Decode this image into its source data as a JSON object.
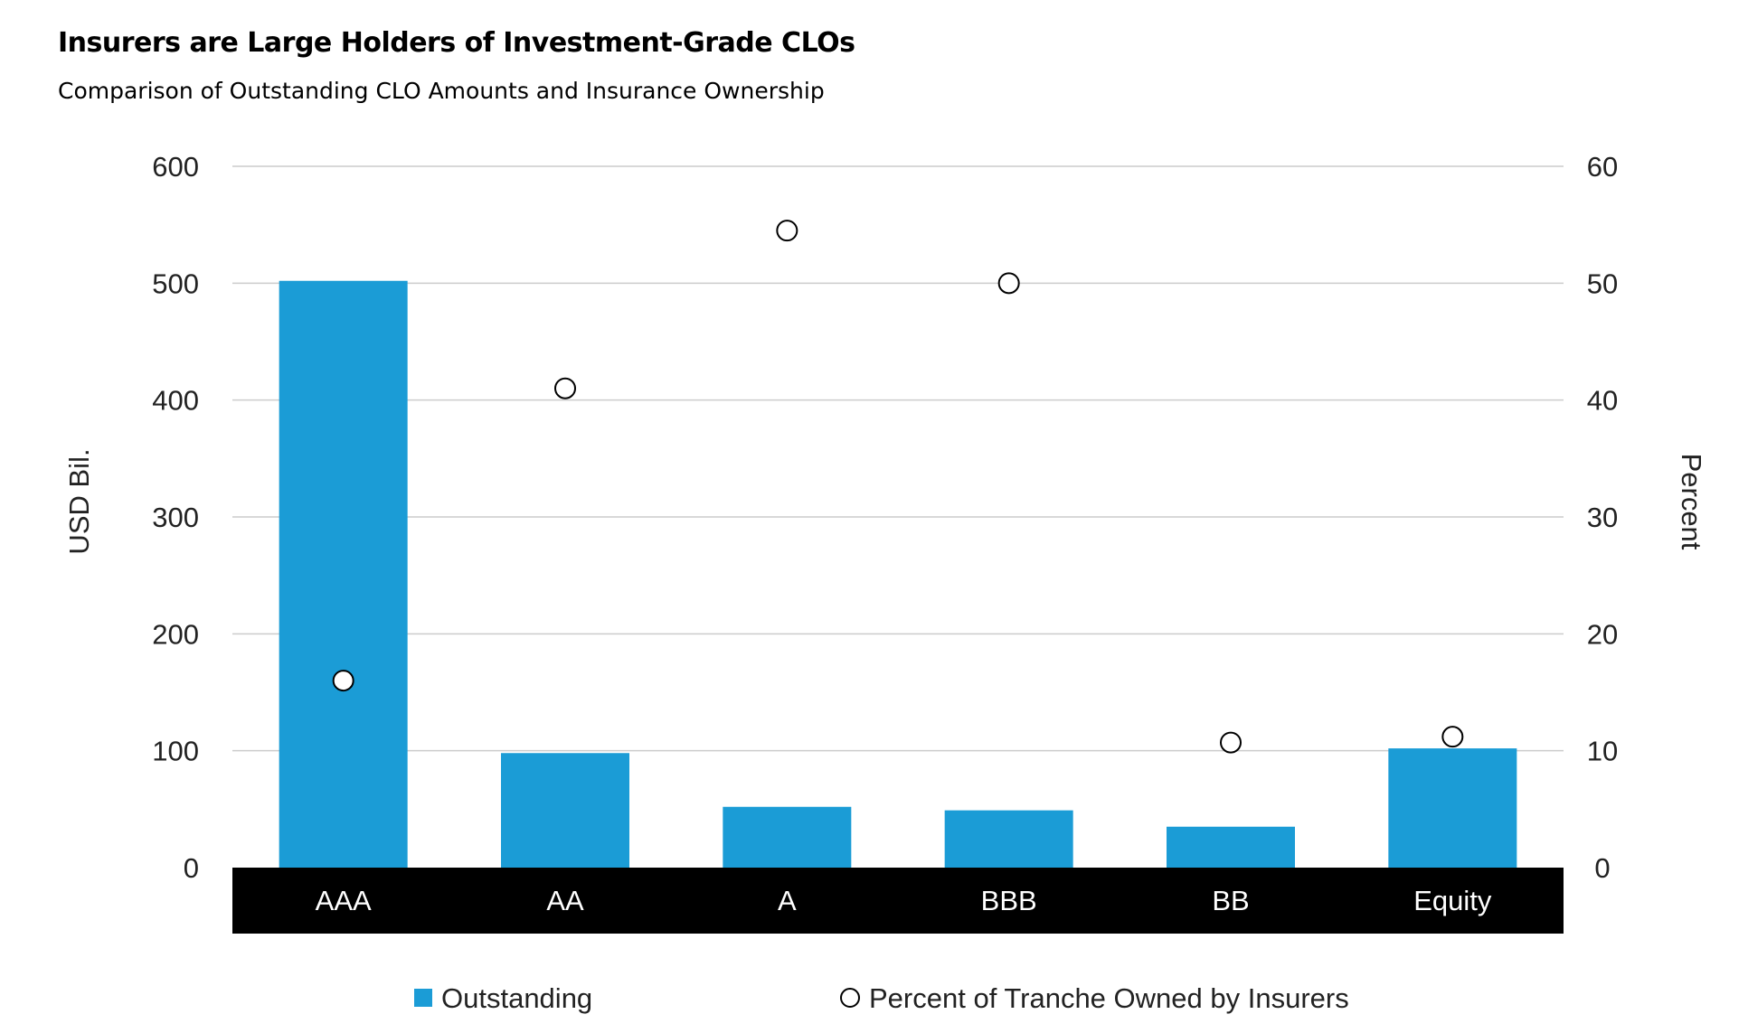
{
  "title": "Insurers are Large Holders of Investment-Grade CLOs",
  "subtitle": "Comparison of Outstanding CLO Amounts and Insurance Ownership",
  "colors": {
    "bar": "#1b9cd6",
    "axis_band": "#000000",
    "grid": "#cccccc"
  },
  "chart_data": {
    "type": "bar",
    "categories": [
      "AAA",
      "AA",
      "A",
      "BBB",
      "BB",
      "Equity"
    ],
    "series": [
      {
        "name": "Outstanding",
        "type": "bar",
        "axis": "left",
        "values": [
          502,
          98,
          52,
          49,
          35,
          102
        ]
      },
      {
        "name": "Percent of Tranche Owned by Insurers",
        "type": "scatter",
        "axis": "right",
        "values": [
          16,
          41,
          54.5,
          50,
          10.7,
          11.2
        ]
      }
    ],
    "ylabel": "USD Bil.",
    "ylabel_right": "Percent",
    "ylim": [
      0,
      600
    ],
    "ylim_right": [
      0,
      60
    ],
    "yticks": [
      "0",
      "100",
      "200",
      "300",
      "400",
      "500",
      "600"
    ],
    "yticks_right": [
      "0",
      "10",
      "20",
      "30",
      "40",
      "50",
      "60"
    ],
    "grid": true,
    "legend_position": "bottom"
  }
}
